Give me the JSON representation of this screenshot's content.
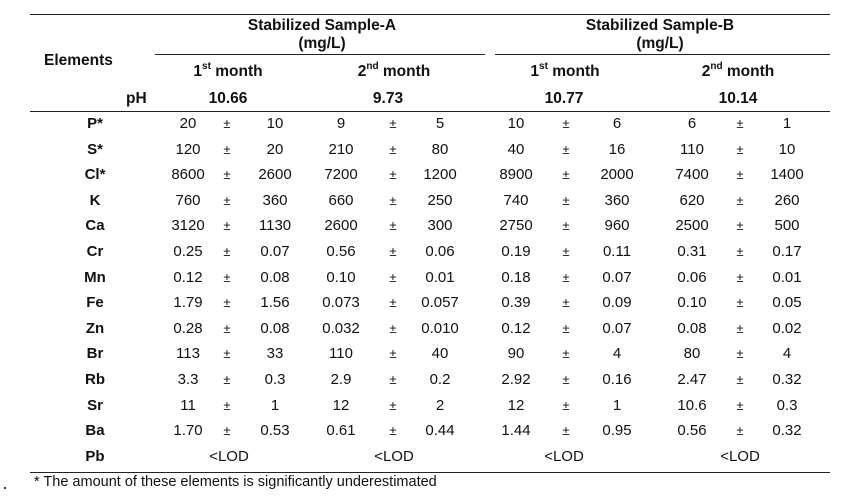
{
  "table": {
    "elements_header": "Elements",
    "ph_label": "pH",
    "groups": [
      {
        "title": "Stabilized Sample-A",
        "unit": "(mg/L)"
      },
      {
        "title": "Stabilized Sample-B",
        "unit": "(mg/L)"
      }
    ],
    "months": [
      {
        "num": "1",
        "sup": "st",
        "word": "month"
      },
      {
        "num": "2",
        "sup": "nd",
        "word": "month"
      },
      {
        "num": "1",
        "sup": "st",
        "word": "month"
      },
      {
        "num": "2",
        "sup": "nd",
        "word": "month"
      }
    ],
    "ph_values": [
      "10.66",
      "9.73",
      "10.77",
      "10.14"
    ],
    "pm": "±",
    "rows": [
      {
        "element": "P*",
        "cells": [
          [
            "20",
            "10"
          ],
          [
            "9",
            "5"
          ],
          [
            "10",
            "6"
          ],
          [
            "6",
            "1"
          ]
        ]
      },
      {
        "element": "S*",
        "cells": [
          [
            "120",
            "20"
          ],
          [
            "210",
            "80"
          ],
          [
            "40",
            "16"
          ],
          [
            "110",
            "10"
          ]
        ]
      },
      {
        "element": "Cl*",
        "cells": [
          [
            "8600",
            "2600"
          ],
          [
            "7200",
            "1200"
          ],
          [
            "8900",
            "2000"
          ],
          [
            "7400",
            "1400"
          ]
        ]
      },
      {
        "element": "K",
        "cells": [
          [
            "760",
            "360"
          ],
          [
            "660",
            "250"
          ],
          [
            "740",
            "360"
          ],
          [
            "620",
            "260"
          ]
        ]
      },
      {
        "element": "Ca",
        "cells": [
          [
            "3120",
            "1130"
          ],
          [
            "2600",
            "300"
          ],
          [
            "2750",
            "960"
          ],
          [
            "2500",
            "500"
          ]
        ]
      },
      {
        "element": "Cr",
        "cells": [
          [
            "0.25",
            "0.07"
          ],
          [
            "0.56",
            "0.06"
          ],
          [
            "0.19",
            "0.11"
          ],
          [
            "0.31",
            "0.17"
          ]
        ]
      },
      {
        "element": "Mn",
        "cells": [
          [
            "0.12",
            "0.08"
          ],
          [
            "0.10",
            "0.01"
          ],
          [
            "0.18",
            "0.07"
          ],
          [
            "0.06",
            "0.01"
          ]
        ]
      },
      {
        "element": "Fe",
        "cells": [
          [
            "1.79",
            "1.56"
          ],
          [
            "0.073",
            "0.057"
          ],
          [
            "0.39",
            "0.09"
          ],
          [
            "0.10",
            "0.05"
          ]
        ]
      },
      {
        "element": "Zn",
        "cells": [
          [
            "0.28",
            "0.08"
          ],
          [
            "0.032",
            "0.010"
          ],
          [
            "0.12",
            "0.07"
          ],
          [
            "0.08",
            "0.02"
          ]
        ]
      },
      {
        "element": "Br",
        "cells": [
          [
            "113",
            "33"
          ],
          [
            "110",
            "40"
          ],
          [
            "90",
            "4"
          ],
          [
            "80",
            "4"
          ]
        ]
      },
      {
        "element": "Rb",
        "cells": [
          [
            "3.3",
            "0.3"
          ],
          [
            "2.9",
            "0.2"
          ],
          [
            "2.92",
            "0.16"
          ],
          [
            "2.47",
            "0.32"
          ]
        ]
      },
      {
        "element": "Sr",
        "cells": [
          [
            "11",
            "1"
          ],
          [
            "12",
            "2"
          ],
          [
            "12",
            "1"
          ],
          [
            "10.6",
            "0.3"
          ]
        ]
      },
      {
        "element": "Ba",
        "cells": [
          [
            "1.70",
            "0.53"
          ],
          [
            "0.61",
            "0.44"
          ],
          [
            "1.44",
            "0.95"
          ],
          [
            "0.56",
            "0.32"
          ]
        ]
      },
      {
        "element": "Pb",
        "lod": "<LOD"
      }
    ],
    "footnote": "* The amount of these elements is significantly underestimated"
  }
}
